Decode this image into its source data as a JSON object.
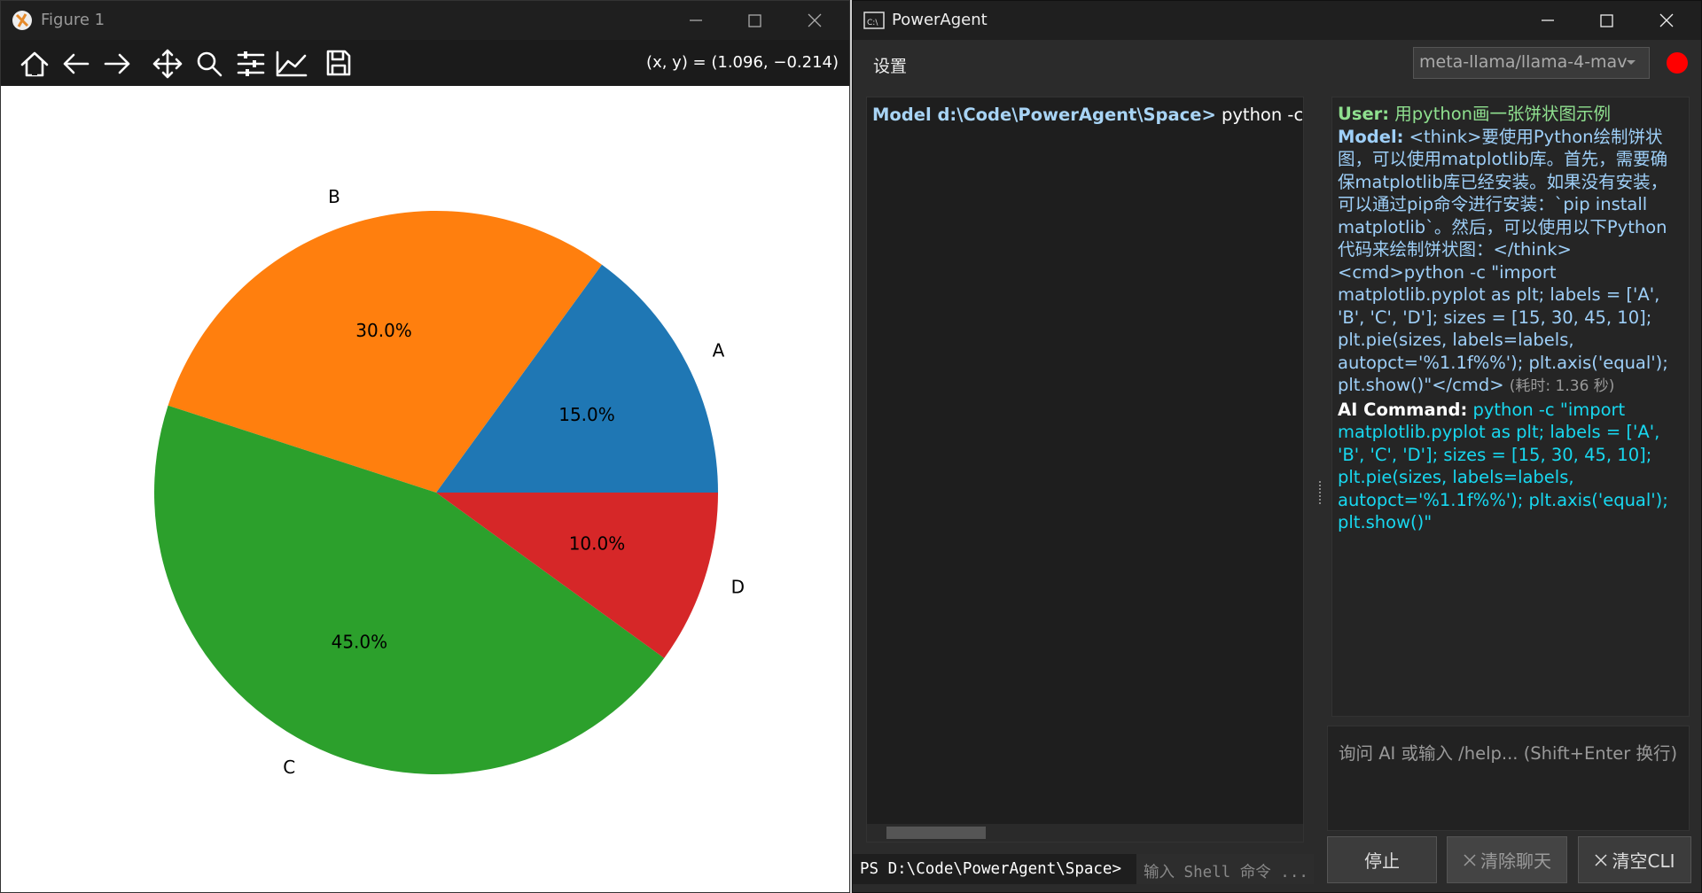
{
  "figure_window": {
    "title": "Figure 1",
    "coords": "(x, y) = (1.096, −0.214)"
  },
  "chart_data": {
    "type": "pie",
    "categories": [
      "A",
      "B",
      "C",
      "D"
    ],
    "values": [
      15,
      30,
      45,
      10
    ],
    "value_labels": [
      "15.0%",
      "30.0%",
      "45.0%",
      "10.0%"
    ],
    "colors": [
      "#1f77b4",
      "#ff7f0e",
      "#2ca02c",
      "#d62728"
    ]
  },
  "app_window": {
    "title": "PowerAgent",
    "menu": "设置",
    "model": "meta-llama/llama-4-mav",
    "terminal": {
      "prompt": "Model d:\\Code\\PowerAgent\\Space>",
      "command": "python -c \"im"
    },
    "shell_prompt": "PS D:\\Code\\PowerAgent\\Space>",
    "shell_placeholder": "输入 Shell 命令 ...",
    "chat": {
      "user_label": "User:",
      "user_text": "用python画一张饼状图示例",
      "model_label": "Model:",
      "model_text": "<think>要使用Python绘制饼状图，可以使用matplotlib库。首先，需要确保matplotlib库已经安装。如果没有安装，可以通过pip命令进行安装：`pip install matplotlib`。然后，可以使用以下Python代码来绘制饼状图：</think> <cmd>python -c \"import matplotlib.pyplot as plt; labels = ['A', 'B', 'C', 'D']; sizes = [15, 30, 45, 10]; plt.pie(sizes, labels=labels, autopct='%1.1f%%'); plt.axis('equal'); plt.show()\"</cmd>",
      "model_time": "(耗时: 1.36 秒)",
      "command_label": "AI Command:",
      "command_text": "python -c \"import matplotlib.pyplot as plt; labels = ['A', 'B', 'C', 'D']; sizes = [15, 30, 45, 10]; plt.pie(sizes, labels=labels, autopct='%1.1f%%'); plt.axis('equal'); plt.show()\""
    },
    "input_placeholder": "询问 AI 或输入 /help... (Shift+Enter 换行)",
    "buttons": {
      "stop": "停止",
      "clear_chat": "清除聊天",
      "clear_cli": "清空CLI"
    }
  }
}
